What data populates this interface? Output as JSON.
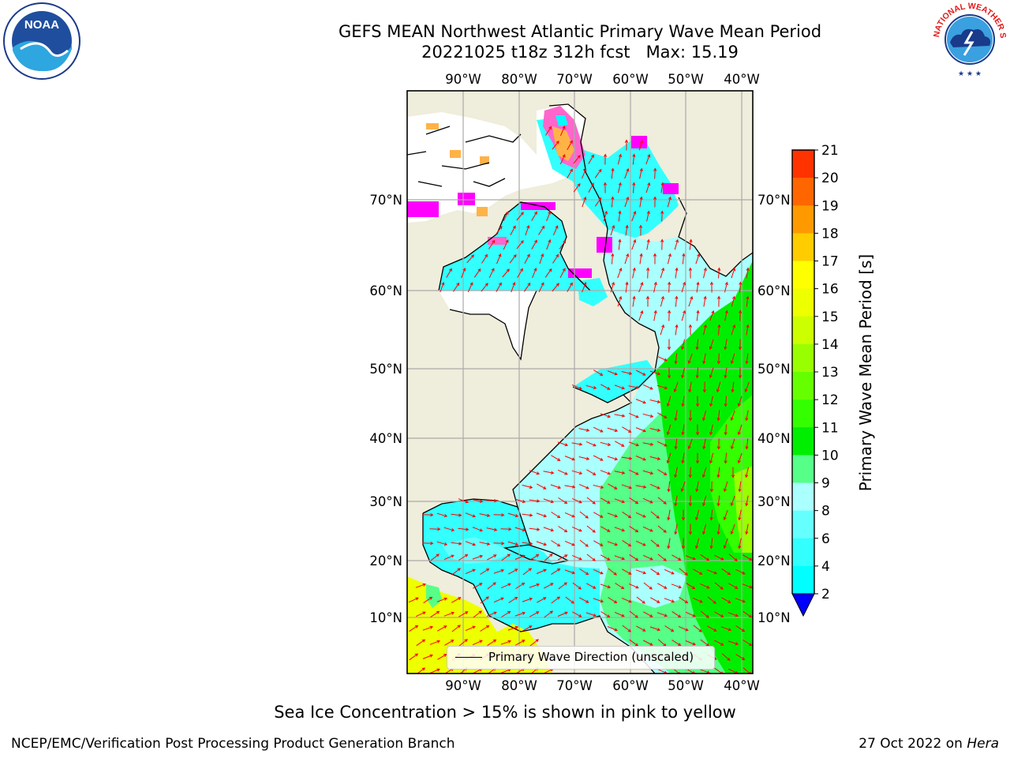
{
  "header": {
    "title_line1": "GEFS MEAN Northwest Atlantic Primary Wave Mean Period",
    "title_line2": "20221025 t18z 312h fcst   Max: 15.19"
  },
  "map": {
    "lon_labels": [
      "90°W",
      "80°W",
      "70°W",
      "60°W",
      "50°W",
      "40°W"
    ],
    "lat_labels": [
      "70°N",
      "60°N",
      "50°N",
      "40°N",
      "30°N",
      "20°N",
      "10°N"
    ],
    "land_color": "#efeddb",
    "ice_colors": [
      "#ff00ff",
      "#ff66cc",
      "#ffb347",
      "#ffff00"
    ],
    "legend_label": "Primary Wave Direction (unscaled)",
    "arrow_color": "#ff0000"
  },
  "colorbar": {
    "label": "Primary Wave Mean Period [s]",
    "ticks": [
      "2",
      "4",
      "6",
      "8",
      "9",
      "10",
      "11",
      "12",
      "13",
      "14",
      "15",
      "16",
      "17",
      "18",
      "19",
      "20",
      "21"
    ],
    "colors": [
      "#0050ff",
      "#00ffff",
      "#33ffff",
      "#66ffff",
      "#aaffff",
      "#55ff88",
      "#00ee00",
      "#33ff00",
      "#66ff00",
      "#99ff00",
      "#ccff00",
      "#eeff00",
      "#ffff00",
      "#ffcc00",
      "#ff9900",
      "#ff6600",
      "#ff3300",
      "#ff0000"
    ],
    "under_color": "#0000ff"
  },
  "footer": {
    "note": "Sea Ice Concentration > 15% is shown in pink to yellow",
    "credit_left": "NCEP/EMC/Verification Post Processing Product Generation Branch",
    "credit_date": "27 Oct 2022 on ",
    "credit_host": "Hera"
  },
  "logos": {
    "noaa_text": "NOAA",
    "nws_text": "NATIONAL WEATHER SERVICE"
  }
}
